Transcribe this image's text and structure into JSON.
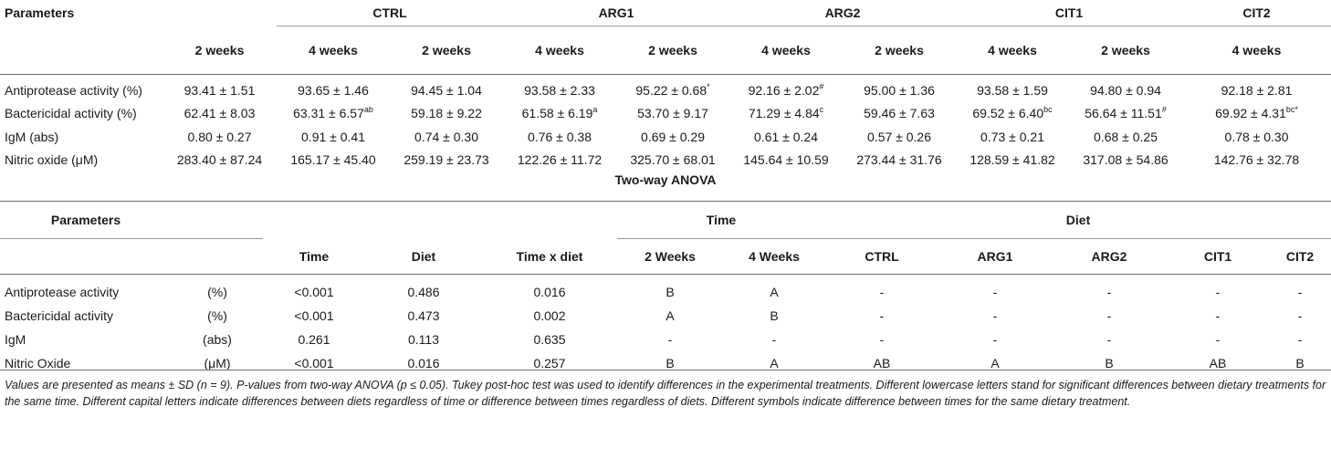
{
  "table1": {
    "header": {
      "parameters": "Parameters",
      "groups": [
        "CTRL",
        "ARG1",
        "ARG2",
        "CIT1",
        "CIT2"
      ],
      "subcols": [
        "2 weeks",
        "4 weeks",
        "2 weeks",
        "4 weeks",
        "2 weeks",
        "4 weeks",
        "2 weeks",
        "4 weeks",
        "2 weeks",
        "4 weeks"
      ]
    },
    "rows": [
      {
        "label": "Antiprotease activity (%)",
        "cells": [
          {
            "v": "93.41 ± 1.51",
            "s": ""
          },
          {
            "v": "93.65 ± 1.46",
            "s": ""
          },
          {
            "v": "94.45 ± 1.04",
            "s": ""
          },
          {
            "v": "93.58 ± 2.33",
            "s": ""
          },
          {
            "v": "95.22 ± 0.68",
            "s": "*"
          },
          {
            "v": "92.16 ± 2.02",
            "s": "#"
          },
          {
            "v": "95.00 ± 1.36",
            "s": ""
          },
          {
            "v": "93.58 ± 1.59",
            "s": ""
          },
          {
            "v": "94.80 ± 0.94",
            "s": ""
          },
          {
            "v": "92.18 ± 2.81",
            "s": ""
          }
        ]
      },
      {
        "label": "Bactericidal activity (%)",
        "cells": [
          {
            "v": "62.41 ± 8.03",
            "s": ""
          },
          {
            "v": "63.31 ± 6.57",
            "s": "ab"
          },
          {
            "v": "59.18 ± 9.22",
            "s": ""
          },
          {
            "v": "61.58 ± 6.19",
            "s": "a"
          },
          {
            "v": "53.70 ± 9.17",
            "s": ""
          },
          {
            "v": "71.29 ± 4.84",
            "s": "c"
          },
          {
            "v": "59.46 ± 7.63",
            "s": ""
          },
          {
            "v": "69.52 ± 6.40",
            "s": "bc"
          },
          {
            "v": "56.64 ± 11.51",
            "s": "#"
          },
          {
            "v": "69.92 ± 4.31",
            "s": "bc*"
          }
        ]
      },
      {
        "label": "IgM (abs)",
        "cells": [
          {
            "v": "0.80 ± 0.27",
            "s": ""
          },
          {
            "v": "0.91 ± 0.41",
            "s": ""
          },
          {
            "v": "0.74 ± 0.30",
            "s": ""
          },
          {
            "v": "0.76 ± 0.38",
            "s": ""
          },
          {
            "v": "0.69 ± 0.29",
            "s": ""
          },
          {
            "v": "0.61 ± 0.24",
            "s": ""
          },
          {
            "v": "0.57 ± 0.26",
            "s": ""
          },
          {
            "v": "0.73 ± 0.21",
            "s": ""
          },
          {
            "v": "0.68 ± 0.25",
            "s": ""
          },
          {
            "v": "0.78 ± 0.30",
            "s": ""
          }
        ]
      },
      {
        "label": "Nitric oxide (μM)",
        "cells": [
          {
            "v": "283.40 ± 87.24",
            "s": ""
          },
          {
            "v": "165.17 ± 45.40",
            "s": ""
          },
          {
            "v": "259.19 ± 23.73",
            "s": ""
          },
          {
            "v": "122.26 ± 11.72",
            "s": ""
          },
          {
            "v": "325.70 ± 68.01",
            "s": ""
          },
          {
            "v": "145.64 ± 10.59",
            "s": ""
          },
          {
            "v": "273.44 ± 31.76",
            "s": ""
          },
          {
            "v": "128.59 ± 41.82",
            "s": ""
          },
          {
            "v": "317.08 ± 54.86",
            "s": ""
          },
          {
            "v": "142.76 ± 32.78",
            "s": ""
          }
        ]
      }
    ]
  },
  "anova_title": "Two-way ANOVA",
  "table2": {
    "header": {
      "parameters": "Parameters",
      "time_group": "Time",
      "diet_group": "Diet",
      "cols": [
        "Time",
        "Diet",
        "Time x diet",
        "2 Weeks",
        "4 Weeks",
        "CTRL",
        "ARG1",
        "ARG2",
        "CIT1",
        "CIT2"
      ]
    },
    "rows": [
      {
        "label": "Antiprotease activity",
        "unit": "(%)",
        "cells": [
          "<0.001",
          "0.486",
          "0.016",
          "B",
          "A",
          "-",
          "-",
          "-",
          "-",
          "-"
        ]
      },
      {
        "label": "Bactericidal activity",
        "unit": "(%)",
        "cells": [
          "<0.001",
          "0.473",
          "0.002",
          "A",
          "B",
          "-",
          "-",
          "-",
          "-",
          "-"
        ]
      },
      {
        "label": "IgM",
        "unit": "(abs)",
        "cells": [
          "0.261",
          "0.113",
          "0.635",
          "-",
          "-",
          "-",
          "-",
          "-",
          "-",
          "-"
        ]
      },
      {
        "label": "Nitric Oxide",
        "unit": "(μM)",
        "cells": [
          "<0.001",
          "0.016",
          "0.257",
          "B",
          "A",
          "AB",
          "A",
          "B",
          "AB",
          "B"
        ]
      }
    ]
  },
  "footnote": "Values are presented as means ± SD (n = 9). P-values from two-way ANOVA (p ≤ 0.05). Tukey post-hoc test was used to identify differences in the experimental treatments. Different lowercase letters stand for significant differences between dietary treatments for the same time. Different capital letters indicate differences between diets regardless of time or difference between times regardless of diets. Different symbols indicate difference between times for the same dietary treatment."
}
